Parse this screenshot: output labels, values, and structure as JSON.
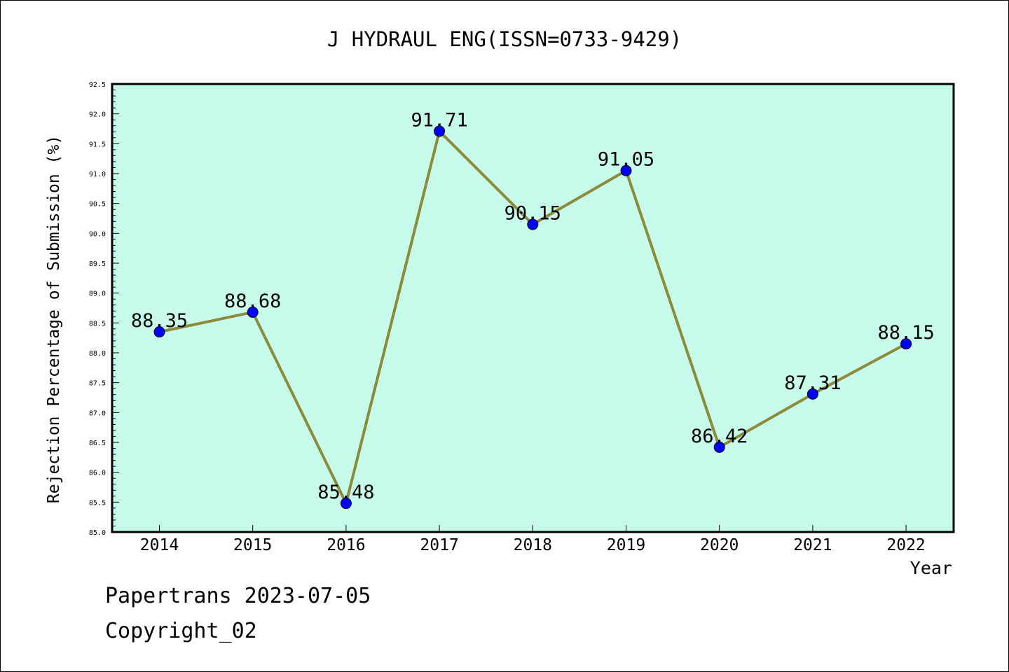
{
  "chart_data": {
    "type": "line",
    "title": "J HYDRAUL ENG(ISSN=0733-9429)",
    "xlabel": "Year",
    "ylabel": "Rejection Percentage of Submission (%)",
    "categories": [
      "2014",
      "2015",
      "2016",
      "2017",
      "2018",
      "2019",
      "2020",
      "2021",
      "2022"
    ],
    "values": [
      88.35,
      88.68,
      85.48,
      91.71,
      90.15,
      91.05,
      86.42,
      87.31,
      88.15
    ],
    "data_labels": [
      "88.35",
      "88.68",
      "85.48",
      "91.71",
      "90.15",
      "91.05",
      "86.42",
      "87.31",
      "88.15"
    ],
    "ylim": [
      85.0,
      92.5
    ],
    "yticks": [
      "85.0",
      "85.5",
      "86.0",
      "86.5",
      "87.0",
      "87.5",
      "88.0",
      "88.5",
      "89.0",
      "89.5",
      "90.0",
      "90.5",
      "91.0",
      "91.5",
      "92.0",
      "92.5"
    ],
    "grid": false,
    "legend": "none",
    "colors": {
      "plot_background": "#c7fcec",
      "line": "#8b8b3a",
      "marker": "#0000ff"
    }
  },
  "footer": {
    "line1": "Papertrans 2023-07-05",
    "line2": "Copyright_02"
  }
}
